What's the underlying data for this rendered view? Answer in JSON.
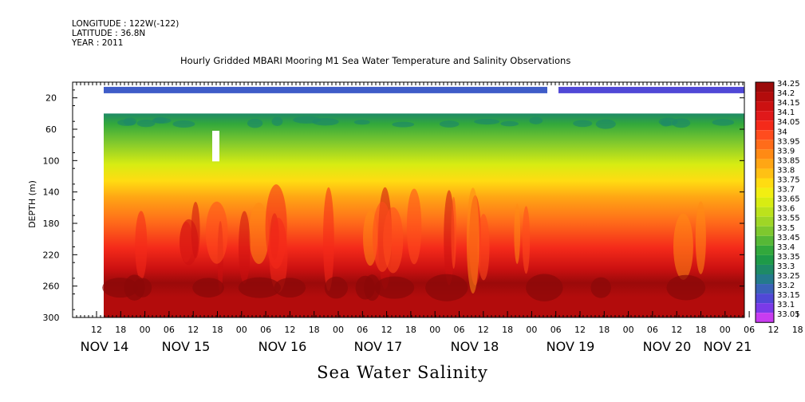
{
  "header": {
    "longitude": "LONGITUDE : 122W(-122)",
    "latitude": "LATITUDE : 36.8N",
    "year": "YEAR : 2011",
    "title": "Hourly Gridded MBARI Mooring M1 Sea Water Temperature and Salinity Observations"
  },
  "footer": {
    "variable_title": "Sea Water Salinity"
  },
  "chart_data": {
    "type": "heatmap",
    "title": "Hourly Gridded MBARI Mooring M1 Sea Water Temperature and Salinity Observations",
    "variable": "Sea Water Salinity",
    "xlabel": "",
    "ylabel": "DEPTH (m)",
    "ylim": [
      300,
      0
    ],
    "yticks": [
      "20",
      "60",
      "100",
      "140",
      "180",
      "220",
      "260",
      "300"
    ],
    "x_hour_ticks": [
      "12",
      "18",
      "00",
      "06",
      "12",
      "18",
      "00",
      "06",
      "12",
      "18",
      "00",
      "06",
      "12",
      "18",
      "00",
      "06",
      "12",
      "18",
      "00",
      "06",
      "12",
      "18",
      "00",
      "06",
      "12",
      "18",
      "00",
      "06",
      "12",
      "18",
      "00",
      "06"
    ],
    "x_date_labels": [
      "NOV 14",
      "NOV 15",
      "NOV 16",
      "NOV 17",
      "NOV 18",
      "NOV 19",
      "NOV 20",
      "NOV 21"
    ],
    "colorbar_levels": [
      "34.25",
      "34.2",
      "34.15",
      "34.1",
      "34.05",
      "34",
      "33.95",
      "33.9",
      "33.85",
      "33.8",
      "33.75",
      "33.7",
      "33.65",
      "33.6",
      "33.55",
      "33.5",
      "33.45",
      "33.4",
      "33.35",
      "33.3",
      "33.25",
      "33.2",
      "33.15",
      "33.1",
      "33.05"
    ],
    "colorbar_colors": [
      "#9b0a0a",
      "#b30c0c",
      "#cc1111",
      "#e0191a",
      "#f42a1a",
      "#ff4c1e",
      "#ff6c1a",
      "#ff8a14",
      "#ffa614",
      "#ffc114",
      "#ffdc12",
      "#f2ee12",
      "#d8ec12",
      "#bce21c",
      "#9fd626",
      "#7ec82e",
      "#56b836",
      "#32a83c",
      "#1e9a48",
      "#1e8a66",
      "#247a8c",
      "#3a62b8",
      "#5048d6",
      "#7a3ae8",
      "#c83cf0"
    ],
    "profile": [
      {
        "depth": 10,
        "value": 33.2
      },
      {
        "depth": 40,
        "value": 33.4
      },
      {
        "depth": 60,
        "value": 33.6
      },
      {
        "depth": 90,
        "value": 33.75
      },
      {
        "depth": 120,
        "value": 33.85
      },
      {
        "depth": 150,
        "value": 33.95
      },
      {
        "depth": 180,
        "value": 34.05
      },
      {
        "depth": 220,
        "value": 34.15
      },
      {
        "depth": 255,
        "value": 34.25
      },
      {
        "depth": 290,
        "value": 34.2
      }
    ]
  }
}
